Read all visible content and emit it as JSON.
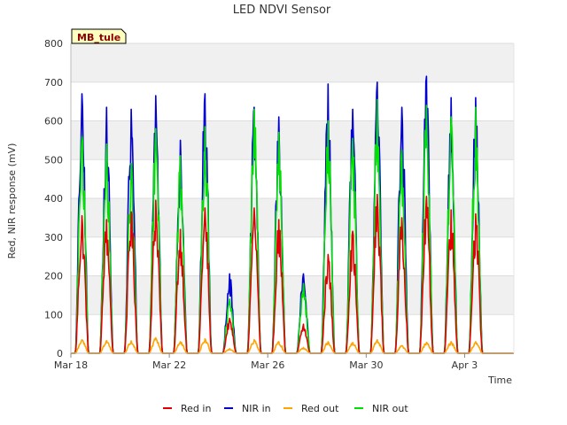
{
  "chart_data": {
    "type": "line",
    "title": "LED NDVI Sensor",
    "badge": "MB_tule",
    "xlabel": "Time",
    "ylabel": "Red, NIR response (mV)",
    "ylim": [
      0,
      800
    ],
    "yticks": [
      0,
      100,
      200,
      300,
      400,
      500,
      600,
      700,
      800
    ],
    "xlim": [
      "Mar 18",
      "Apr 5"
    ],
    "xticks": [
      "Mar 18",
      "Mar 22",
      "Mar 26",
      "Mar 30",
      "Apr 3"
    ],
    "grid": true,
    "legend_position": "bottom",
    "days": [
      "Mar 18",
      "Mar 19",
      "Mar 20",
      "Mar 21",
      "Mar 22",
      "Mar 23",
      "Mar 24",
      "Mar 25",
      "Mar 26",
      "Mar 27",
      "Mar 28",
      "Mar 29",
      "Mar 30",
      "Mar 31",
      "Apr 1",
      "Apr 2",
      "Apr 3",
      "Apr 4"
    ],
    "series": [
      {
        "name": "Red in",
        "color": "#e00000",
        "daily_peak": [
          355,
          345,
          365,
          395,
          320,
          375,
          90,
          375,
          345,
          75,
          255,
          315,
          410,
          350,
          405,
          370,
          360,
          0
        ]
      },
      {
        "name": "NIR in",
        "color": "#0000d0",
        "daily_peak": [
          670,
          635,
          630,
          665,
          550,
          670,
          205,
          635,
          610,
          205,
          695,
          630,
          700,
          635,
          715,
          660,
          660,
          0
        ]
      },
      {
        "name": "Red out",
        "color": "#ffa500",
        "daily_peak": [
          35,
          33,
          32,
          40,
          30,
          37,
          12,
          35,
          30,
          15,
          30,
          28,
          35,
          20,
          28,
          30,
          30,
          0
        ]
      },
      {
        "name": "NIR out",
        "color": "#00e000",
        "daily_peak": [
          560,
          540,
          490,
          580,
          510,
          585,
          140,
          630,
          570,
          180,
          600,
          555,
          655,
          525,
          640,
          610,
          635,
          0
        ]
      }
    ]
  }
}
